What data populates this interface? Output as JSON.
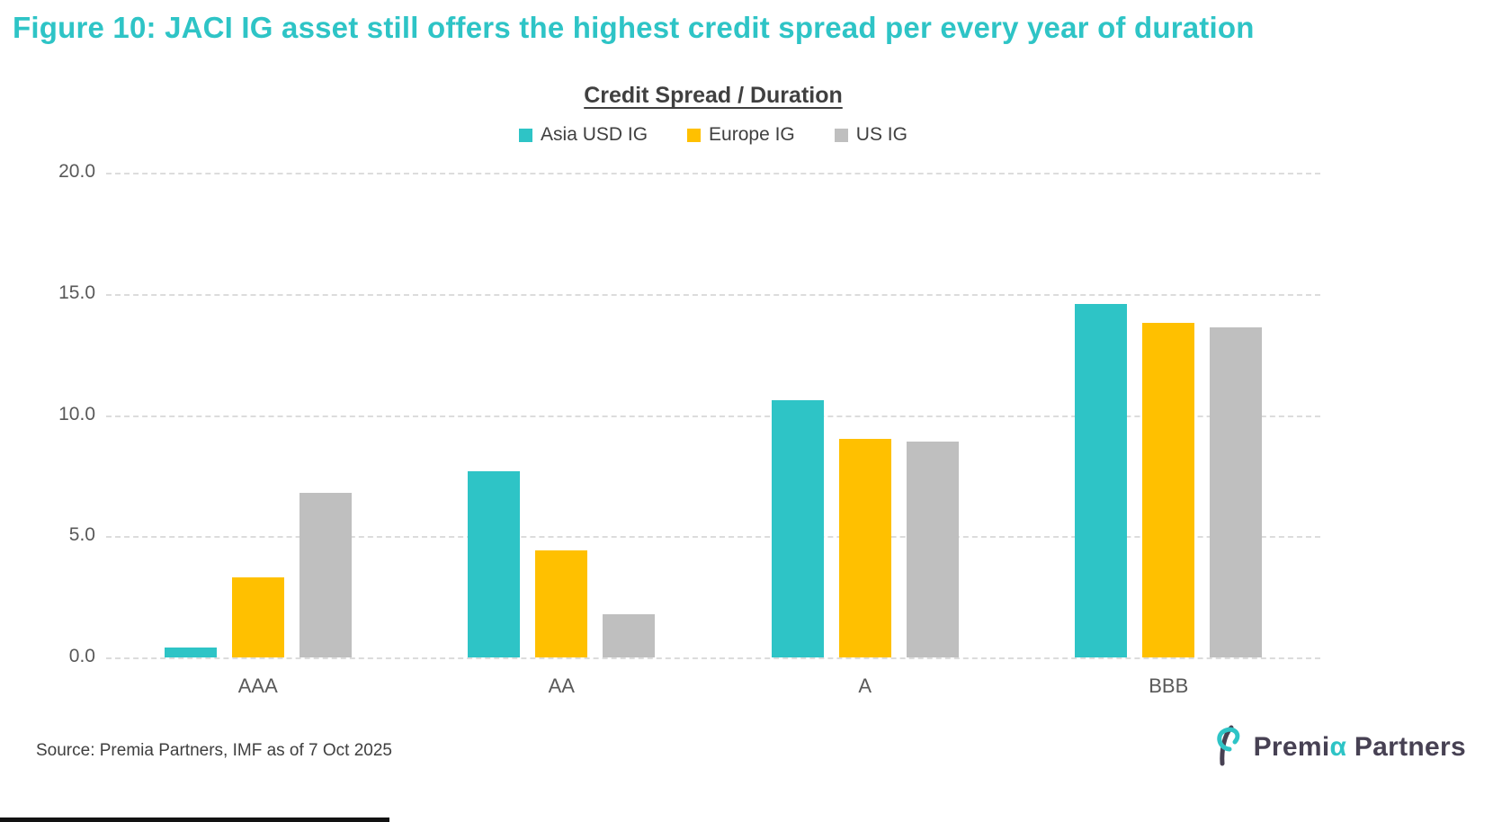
{
  "page": {
    "figure_title": "Figure 10: JACI IG asset still offers the highest credit spread per every year of duration",
    "source": "Source: Premia Partners, IMF as of 7 Oct 2025",
    "logo": {
      "text_pre": "Premi",
      "text_alpha": "α",
      "text_post": " Partners"
    }
  },
  "colors": {
    "accent_teal": "#2EC4C6",
    "europe_yellow": "#FFC000",
    "us_gray": "#BFBFBF",
    "gridline": "#DCDCDC",
    "axis_text": "#595959",
    "title_text": "#404040"
  },
  "chart_data": {
    "type": "bar",
    "title": "Credit Spread  / Duration",
    "categories": [
      "AAA",
      "AA",
      "A",
      "BBB"
    ],
    "series": [
      {
        "name": "Asia USD IG",
        "color": "#2EC4C6",
        "values": [
          0.4,
          7.7,
          10.6,
          14.6
        ]
      },
      {
        "name": "Europe IG",
        "color": "#FFC000",
        "values": [
          3.3,
          4.4,
          9.0,
          13.8
        ]
      },
      {
        "name": "US IG",
        "color": "#BFBFBF",
        "values": [
          6.8,
          1.8,
          8.9,
          13.6
        ]
      }
    ],
    "ylim": [
      0,
      20
    ],
    "yticks": [
      20.0,
      15.0,
      10.0,
      5.0,
      0.0
    ],
    "ytick_labels": [
      "20.0",
      "15.0",
      "10.0",
      "5.0",
      "0.0"
    ],
    "grid": "horizontal-dashed",
    "legend_position": "top"
  }
}
